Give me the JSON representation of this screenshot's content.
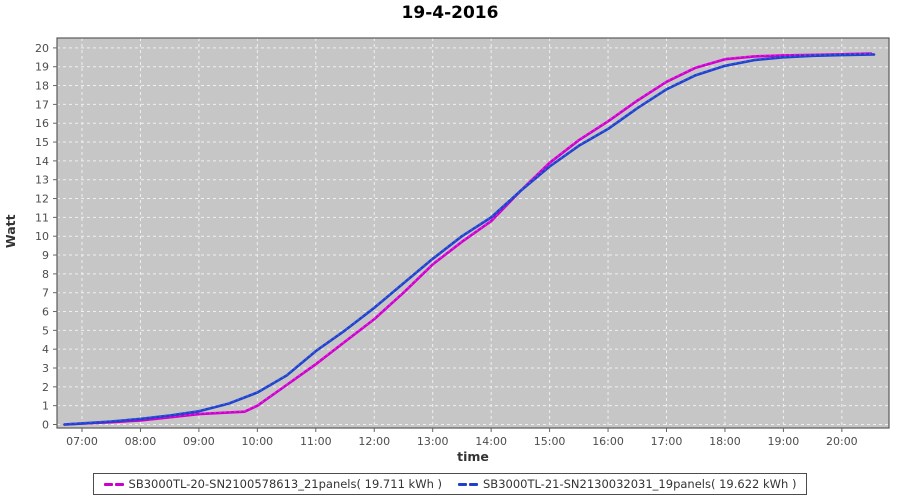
{
  "chart_data": {
    "type": "line",
    "title": "19-4-2016",
    "xlabel": "time",
    "ylabel": "Watt",
    "ylim": [
      0,
      20
    ],
    "xlim_hours": [
      6.57,
      20.82
    ],
    "grid": true,
    "legend_position": "bottom",
    "y_ticks": [
      0,
      1,
      2,
      3,
      4,
      5,
      6,
      7,
      8,
      9,
      10,
      11,
      12,
      13,
      14,
      15,
      16,
      17,
      18,
      19,
      20
    ],
    "x_ticks": [
      {
        "h": 7,
        "label": "07:00"
      },
      {
        "h": 8,
        "label": "08:00"
      },
      {
        "h": 9,
        "label": "09:00"
      },
      {
        "h": 10,
        "label": "10:00"
      },
      {
        "h": 11,
        "label": "11:00"
      },
      {
        "h": 12,
        "label": "12:00"
      },
      {
        "h": 13,
        "label": "13:00"
      },
      {
        "h": 14,
        "label": "14:00"
      },
      {
        "h": 15,
        "label": "15:00"
      },
      {
        "h": 16,
        "label": "16:00"
      },
      {
        "h": 17,
        "label": "17:00"
      },
      {
        "h": 18,
        "label": "18:00"
      },
      {
        "h": 19,
        "label": "19:00"
      },
      {
        "h": 20,
        "label": "20:00"
      }
    ],
    "colors": {
      "plot_bg": "#c6c6c6",
      "grid": "#f0f0f0",
      "border": "#5a5a5a",
      "tick": "#666666",
      "tick_text": "#4d4d4d",
      "axis_title": "#333333",
      "title_text": "#000000"
    },
    "series": [
      {
        "name": "SB3000TL-20-SN2100578613_21panels( 19.711 kWh )",
        "color": "#cc00cc",
        "highlight": "#e81fe8",
        "points": [
          [
            6.7,
            0.0
          ],
          [
            7.0,
            0.05
          ],
          [
            7.5,
            0.12
          ],
          [
            8.0,
            0.22
          ],
          [
            8.5,
            0.38
          ],
          [
            9.0,
            0.55
          ],
          [
            9.4,
            0.62
          ],
          [
            9.78,
            0.68
          ],
          [
            10.0,
            1.0
          ],
          [
            10.5,
            2.1
          ],
          [
            11.0,
            3.2
          ],
          [
            11.5,
            4.4
          ],
          [
            12.0,
            5.6
          ],
          [
            12.5,
            7.0
          ],
          [
            13.0,
            8.5
          ],
          [
            13.5,
            9.7
          ],
          [
            14.0,
            10.8
          ],
          [
            14.5,
            12.4
          ],
          [
            15.0,
            13.9
          ],
          [
            15.5,
            15.1
          ],
          [
            16.0,
            16.1
          ],
          [
            16.5,
            17.2
          ],
          [
            17.0,
            18.2
          ],
          [
            17.5,
            18.95
          ],
          [
            18.0,
            19.4
          ],
          [
            18.5,
            19.55
          ],
          [
            19.0,
            19.6
          ],
          [
            19.5,
            19.63
          ],
          [
            20.0,
            19.66
          ],
          [
            20.5,
            19.7
          ]
        ]
      },
      {
        "name": "SB3000TL-21-SN2130032031_19panels( 19.622 kWh )",
        "color": "#1f41cc",
        "highlight": "#3c5ce0",
        "points": [
          [
            6.7,
            0.0
          ],
          [
            7.0,
            0.06
          ],
          [
            7.5,
            0.16
          ],
          [
            8.0,
            0.3
          ],
          [
            8.5,
            0.48
          ],
          [
            9.0,
            0.7
          ],
          [
            9.5,
            1.1
          ],
          [
            10.0,
            1.7
          ],
          [
            10.5,
            2.6
          ],
          [
            11.0,
            3.9
          ],
          [
            11.5,
            5.0
          ],
          [
            12.0,
            6.2
          ],
          [
            12.5,
            7.5
          ],
          [
            13.0,
            8.8
          ],
          [
            13.5,
            10.0
          ],
          [
            14.0,
            11.0
          ],
          [
            14.5,
            12.4
          ],
          [
            15.0,
            13.7
          ],
          [
            15.5,
            14.8
          ],
          [
            16.0,
            15.7
          ],
          [
            16.5,
            16.8
          ],
          [
            17.0,
            17.8
          ],
          [
            17.5,
            18.55
          ],
          [
            18.0,
            19.05
          ],
          [
            18.5,
            19.35
          ],
          [
            19.0,
            19.5
          ],
          [
            19.5,
            19.58
          ],
          [
            20.0,
            19.62
          ],
          [
            20.55,
            19.65
          ]
        ]
      }
    ]
  }
}
